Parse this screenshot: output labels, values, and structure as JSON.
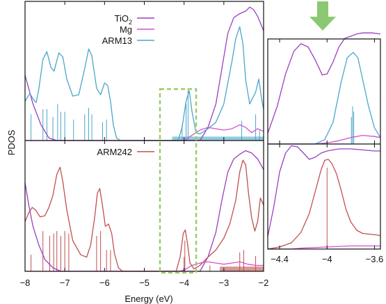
{
  "chart_data": {
    "type": "line",
    "xlabel": "Energy (eV)",
    "ylabel": "PDOS",
    "xlim": [
      -8,
      -2
    ],
    "xticks": [
      -8,
      -7,
      -6,
      -5,
      -4,
      -3,
      -2
    ],
    "inset_xlim": [
      -4.5,
      -3.55
    ],
    "inset_xticks": [
      -4.4,
      -4,
      -3.6
    ],
    "legend_top": [
      {
        "name": "TiO₂",
        "label_html": "TiO<tspan font-size='9' dy='4'>2</tspan>",
        "color": "#9b3fc0"
      },
      {
        "name": "Mg",
        "color": "#d54fcf"
      },
      {
        "name": "ARM13",
        "color": "#4aa6c8"
      }
    ],
    "legend_bottom": [
      {
        "name": "ARM242",
        "color": "#c0504d"
      }
    ],
    "colors": {
      "tio2": "#9b3fc0",
      "mg": "#d54fcf",
      "arm13": "#4aa6c8",
      "arm242": "#c0504d",
      "box": "#99cc66",
      "arrow": "#8bc873"
    },
    "panels": {
      "top": {
        "tio2": [
          [
            -8.0,
            0.5
          ],
          [
            -7.8,
            0.28
          ],
          [
            -7.6,
            0.12
          ],
          [
            -7.4,
            0.02
          ],
          [
            -7.2,
            0.0
          ],
          [
            -3.6,
            0.0
          ],
          [
            -3.4,
            0.1
          ],
          [
            -3.2,
            0.28
          ],
          [
            -3.05,
            0.55
          ],
          [
            -2.9,
            0.82
          ],
          [
            -2.75,
            0.94
          ],
          [
            -2.6,
            0.97
          ],
          [
            -2.45,
            0.99
          ],
          [
            -2.35,
            1.02
          ],
          [
            -2.25,
            1.0
          ],
          [
            -2.15,
            0.95
          ],
          [
            -2.0,
            0.84
          ]
        ],
        "mg": [
          [
            -8.0,
            0.0
          ],
          [
            -4.0,
            0.0
          ],
          [
            -3.9,
            0.02
          ],
          [
            -3.75,
            0.05
          ],
          [
            -3.6,
            0.08
          ],
          [
            -3.4,
            0.1
          ],
          [
            -3.2,
            0.09
          ],
          [
            -3.0,
            0.08
          ],
          [
            -2.8,
            0.09
          ],
          [
            -2.6,
            0.12
          ],
          [
            -2.45,
            0.1
          ],
          [
            -2.3,
            0.06
          ],
          [
            -2.15,
            0.09
          ],
          [
            -2.0,
            0.07
          ]
        ],
        "arm13": [
          [
            -8.0,
            0.3
          ],
          [
            -7.88,
            0.36
          ],
          [
            -7.78,
            0.31
          ],
          [
            -7.72,
            0.29
          ],
          [
            -7.65,
            0.4
          ],
          [
            -7.55,
            0.62
          ],
          [
            -7.45,
            0.68
          ],
          [
            -7.35,
            0.56
          ],
          [
            -7.27,
            0.53
          ],
          [
            -7.15,
            0.67
          ],
          [
            -7.05,
            0.64
          ],
          [
            -6.95,
            0.47
          ],
          [
            -6.8,
            0.34
          ],
          [
            -6.65,
            0.35
          ],
          [
            -6.5,
            0.55
          ],
          [
            -6.4,
            0.7
          ],
          [
            -6.32,
            0.65
          ],
          [
            -6.2,
            0.4
          ],
          [
            -6.1,
            0.35
          ],
          [
            -6.0,
            0.44
          ],
          [
            -5.92,
            0.42
          ],
          [
            -5.85,
            0.3
          ],
          [
            -5.78,
            0.12
          ],
          [
            -5.7,
            0.02
          ],
          [
            -5.6,
            0.0
          ],
          [
            -4.15,
            0.0
          ],
          [
            -4.05,
            0.1
          ],
          [
            -3.95,
            0.3
          ],
          [
            -3.87,
            0.38
          ],
          [
            -3.8,
            0.22
          ],
          [
            -3.7,
            0.06
          ],
          [
            -3.6,
            0.05
          ],
          [
            -3.4,
            0.09
          ],
          [
            -3.2,
            0.14
          ],
          [
            -3.0,
            0.28
          ],
          [
            -2.8,
            0.6
          ],
          [
            -2.7,
            0.78
          ],
          [
            -2.6,
            0.87
          ],
          [
            -2.52,
            0.74
          ],
          [
            -2.45,
            0.46
          ],
          [
            -2.35,
            0.28
          ],
          [
            -2.2,
            0.37
          ],
          [
            -2.12,
            0.47
          ],
          [
            -2.05,
            0.32
          ],
          [
            -2.0,
            0.24
          ]
        ],
        "arm13_sticks": [
          [
            -7.85,
            0.2
          ],
          [
            -7.55,
            0.24
          ],
          [
            -7.45,
            0.24
          ],
          [
            -7.3,
            0.18
          ],
          [
            -7.18,
            0.28
          ],
          [
            -7.1,
            0.22
          ],
          [
            -7.0,
            0.22
          ],
          [
            -6.78,
            0.16
          ],
          [
            -6.5,
            0.2
          ],
          [
            -6.4,
            0.25
          ],
          [
            -6.32,
            0.2
          ],
          [
            -6.05,
            0.14
          ],
          [
            -5.95,
            0.16
          ],
          [
            -4.05,
            0.12
          ],
          [
            -3.95,
            0.28
          ],
          [
            -3.9,
            0.4
          ],
          [
            -2.55,
            0.15
          ],
          [
            -2.2,
            0.2
          ],
          [
            -2.1,
            0.08
          ]
        ],
        "arm13_fill": [
          [
            -4.3,
            -2.0,
            0.03
          ]
        ]
      },
      "bottom": {
        "tio2": [
          [
            -8.0,
            0.75
          ],
          [
            -7.9,
            0.55
          ],
          [
            -7.8,
            0.38
          ],
          [
            -7.65,
            0.22
          ],
          [
            -7.5,
            0.1
          ],
          [
            -7.3,
            0.03
          ],
          [
            -7.1,
            0.0
          ],
          [
            -3.6,
            0.0
          ],
          [
            -3.4,
            0.12
          ],
          [
            -3.2,
            0.33
          ],
          [
            -3.05,
            0.6
          ],
          [
            -2.9,
            0.84
          ],
          [
            -2.75,
            0.95
          ],
          [
            -2.6,
            0.99
          ],
          [
            -2.45,
            1.02
          ],
          [
            -2.3,
            1.0
          ],
          [
            -2.15,
            0.95
          ],
          [
            -2.0,
            0.86
          ]
        ],
        "mg": [
          [
            -8.0,
            0.0
          ],
          [
            -4.1,
            0.0
          ],
          [
            -3.95,
            0.02
          ],
          [
            -3.8,
            0.05
          ],
          [
            -3.6,
            0.07
          ],
          [
            -3.4,
            0.08
          ],
          [
            -3.2,
            0.07
          ],
          [
            -3.0,
            0.06
          ],
          [
            -2.8,
            0.07
          ],
          [
            -2.6,
            0.08
          ],
          [
            -2.4,
            0.06
          ],
          [
            -2.2,
            0.05
          ],
          [
            -2.0,
            0.05
          ]
        ],
        "arm242": [
          [
            -8.0,
            0.42
          ],
          [
            -7.9,
            0.5
          ],
          [
            -7.82,
            0.54
          ],
          [
            -7.74,
            0.52
          ],
          [
            -7.62,
            0.46
          ],
          [
            -7.5,
            0.47
          ],
          [
            -7.4,
            0.54
          ],
          [
            -7.3,
            0.64
          ],
          [
            -7.2,
            0.82
          ],
          [
            -7.12,
            0.88
          ],
          [
            -7.05,
            0.76
          ],
          [
            -6.95,
            0.52
          ],
          [
            -6.8,
            0.26
          ],
          [
            -6.6,
            0.14
          ],
          [
            -6.45,
            0.12
          ],
          [
            -6.35,
            0.22
          ],
          [
            -6.25,
            0.45
          ],
          [
            -6.18,
            0.66
          ],
          [
            -6.12,
            0.7
          ],
          [
            -6.05,
            0.55
          ],
          [
            -5.98,
            0.38
          ],
          [
            -5.9,
            0.4
          ],
          [
            -5.82,
            0.32
          ],
          [
            -5.75,
            0.15
          ],
          [
            -5.65,
            0.03
          ],
          [
            -5.55,
            0.0
          ],
          [
            -4.2,
            0.0
          ],
          [
            -4.1,
            0.12
          ],
          [
            -4.02,
            0.32
          ],
          [
            -3.97,
            0.35
          ],
          [
            -3.92,
            0.25
          ],
          [
            -3.85,
            0.07
          ],
          [
            -3.75,
            0.02
          ],
          [
            -3.6,
            0.05
          ],
          [
            -3.4,
            0.12
          ],
          [
            -3.2,
            0.18
          ],
          [
            -3.0,
            0.28
          ],
          [
            -2.85,
            0.4
          ],
          [
            -2.7,
            0.6
          ],
          [
            -2.6,
            0.84
          ],
          [
            -2.52,
            0.94
          ],
          [
            -2.45,
            0.9
          ],
          [
            -2.38,
            0.66
          ],
          [
            -2.3,
            0.45
          ],
          [
            -2.22,
            0.34
          ],
          [
            -2.15,
            0.42
          ],
          [
            -2.08,
            0.62
          ],
          [
            -2.0,
            0.56
          ]
        ],
        "arm242_sticks": [
          [
            -7.85,
            0.14
          ],
          [
            -7.55,
            0.34
          ],
          [
            -7.38,
            0.3
          ],
          [
            -7.28,
            0.32
          ],
          [
            -7.2,
            0.34
          ],
          [
            -7.1,
            0.3
          ],
          [
            -7.0,
            0.34
          ],
          [
            -6.9,
            0.32
          ],
          [
            -6.2,
            0.3
          ],
          [
            -6.1,
            0.34
          ],
          [
            -5.95,
            0.18
          ],
          [
            -5.85,
            0.18
          ],
          [
            -4.0,
            0.12
          ],
          [
            -3.98,
            0.26
          ],
          [
            -3.35,
            0.05
          ],
          [
            -2.6,
            0.16
          ],
          [
            -2.5,
            0.18
          ],
          [
            -2.2,
            0.13
          ]
        ],
        "arm242_fill": [
          [
            -3.1,
            -2.0,
            0.04
          ]
        ]
      },
      "inset_top": {
        "tio2": [
          [
            -4.5,
            0.1
          ],
          [
            -4.42,
            0.35
          ],
          [
            -4.35,
            0.65
          ],
          [
            -4.28,
            0.86
          ],
          [
            -4.22,
            0.93
          ],
          [
            -4.16,
            0.9
          ],
          [
            -4.1,
            0.78
          ],
          [
            -4.04,
            0.64
          ],
          [
            -4.0,
            0.65
          ],
          [
            -3.95,
            0.76
          ],
          [
            -3.9,
            0.9
          ],
          [
            -3.85,
            0.98
          ],
          [
            -3.8,
            1.0
          ],
          [
            -3.75,
            1.02
          ],
          [
            -3.7,
            1.03
          ],
          [
            -3.62,
            1.03
          ],
          [
            -3.55,
            1.02
          ]
        ],
        "mg": [
          [
            -4.5,
            0.0
          ],
          [
            -4.1,
            0.0
          ],
          [
            -4.0,
            0.01
          ],
          [
            -3.9,
            0.03
          ],
          [
            -3.8,
            0.06
          ],
          [
            -3.7,
            0.08
          ],
          [
            -3.6,
            0.07
          ],
          [
            -3.55,
            0.06
          ]
        ],
        "arm13": [
          [
            -4.5,
            0.0
          ],
          [
            -4.1,
            0.0
          ],
          [
            -4.02,
            0.04
          ],
          [
            -3.95,
            0.2
          ],
          [
            -3.88,
            0.58
          ],
          [
            -3.83,
            0.8
          ],
          [
            -3.78,
            0.85
          ],
          [
            -3.74,
            0.8
          ],
          [
            -3.7,
            0.6
          ],
          [
            -3.65,
            0.35
          ],
          [
            -3.6,
            0.15
          ],
          [
            -3.55,
            0.06
          ]
        ],
        "arm13_sticks": [
          [
            -3.795,
            0.25
          ],
          [
            -3.785,
            0.35
          ],
          [
            -3.775,
            0.3
          ]
        ]
      },
      "inset_bottom": {
        "tio2": [
          [
            -4.5,
            0.12
          ],
          [
            -4.45,
            0.4
          ],
          [
            -4.4,
            0.74
          ],
          [
            -4.35,
            0.92
          ],
          [
            -4.3,
            0.99
          ],
          [
            -4.25,
            0.98
          ],
          [
            -4.2,
            0.92
          ],
          [
            -4.15,
            0.86
          ],
          [
            -4.1,
            0.88
          ],
          [
            -4.05,
            0.92
          ],
          [
            -4.0,
            0.94
          ],
          [
            -3.95,
            0.95
          ],
          [
            -3.9,
            0.96
          ],
          [
            -3.8,
            0.96
          ],
          [
            -3.7,
            0.95
          ],
          [
            -3.6,
            0.94
          ],
          [
            -3.55,
            0.94
          ]
        ],
        "mg": [
          [
            -4.5,
            0.0
          ],
          [
            -4.3,
            0.0
          ],
          [
            -4.2,
            0.01
          ],
          [
            -4.0,
            0.02
          ],
          [
            -3.8,
            0.03
          ],
          [
            -3.6,
            0.03
          ],
          [
            -3.55,
            0.03
          ]
        ],
        "arm242": [
          [
            -4.5,
            0.0
          ],
          [
            -4.4,
            0.02
          ],
          [
            -4.3,
            0.06
          ],
          [
            -4.22,
            0.16
          ],
          [
            -4.15,
            0.34
          ],
          [
            -4.1,
            0.55
          ],
          [
            -4.05,
            0.76
          ],
          [
            -4.02,
            0.85
          ],
          [
            -3.99,
            0.86
          ],
          [
            -3.96,
            0.82
          ],
          [
            -3.92,
            0.72
          ],
          [
            -3.88,
            0.56
          ],
          [
            -3.84,
            0.38
          ],
          [
            -3.8,
            0.26
          ],
          [
            -3.75,
            0.18
          ],
          [
            -3.7,
            0.15
          ],
          [
            -3.62,
            0.14
          ],
          [
            -3.55,
            0.13
          ]
        ],
        "arm242_sticks": [
          [
            -4.0,
            0.78
          ]
        ]
      }
    }
  }
}
